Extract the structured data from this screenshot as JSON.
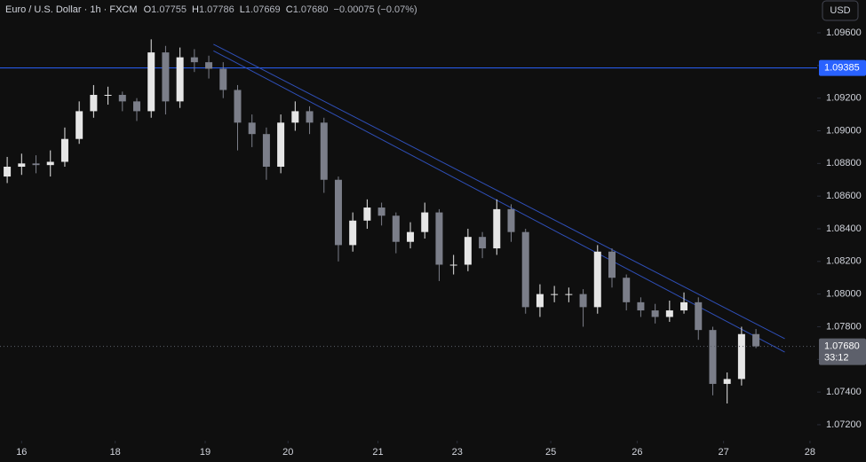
{
  "header": {
    "symbol": "Euro / U.S. Dollar · 1h · FXCM",
    "ohlc_letters": [
      "O",
      "H",
      "L",
      "C"
    ],
    "ohlc_values": [
      "1.07755",
      "1.07786",
      "1.07669",
      "1.07680"
    ],
    "change": "−0.00075 (−0.07%)",
    "currency": "USD"
  },
  "chart_data": {
    "type": "candlestick",
    "up_color": "#e6e6e6",
    "down_color": "#7b7e89",
    "x": [
      2,
      6,
      10,
      14,
      18,
      22,
      26,
      30,
      34,
      38,
      42,
      46,
      50,
      54,
      58,
      62,
      66,
      70,
      74,
      78,
      82,
      86,
      90,
      94,
      98,
      102,
      106,
      110,
      114,
      118,
      122,
      126,
      130,
      134,
      138,
      142,
      146,
      150,
      154,
      158,
      162,
      166,
      170,
      174,
      178,
      182,
      186,
      190,
      194,
      198,
      202,
      206,
      210
    ],
    "open": [
      1.0872,
      1.0878,
      1.088,
      1.0879,
      1.0881,
      1.0895,
      1.0912,
      1.0922,
      1.0922,
      1.0918,
      1.0912,
      1.0948,
      1.0918,
      1.0945,
      1.0942,
      1.0938,
      1.0925,
      1.0905,
      1.0898,
      1.0878,
      1.0905,
      1.0912,
      1.0905,
      1.087,
      1.083,
      1.0845,
      1.0853,
      1.0848,
      1.0832,
      1.0838,
      1.085,
      1.0818,
      1.0818,
      1.0835,
      1.0828,
      1.0852,
      1.0838,
      1.0792,
      1.08,
      1.08,
      1.08,
      1.0792,
      1.0826,
      1.081,
      1.0795,
      1.079,
      1.0786,
      1.079,
      1.0795,
      1.0778,
      1.0745,
      1.0748,
      1.07755
    ],
    "high": [
      1.0884,
      1.0886,
      1.0885,
      1.0888,
      1.0902,
      1.0918,
      1.0928,
      1.0927,
      1.0924,
      1.092,
      1.0956,
      1.0952,
      1.0951,
      1.095,
      1.0946,
      1.0942,
      1.0928,
      1.091,
      1.0902,
      1.091,
      1.0918,
      1.0915,
      1.0908,
      1.0872,
      1.085,
      1.0858,
      1.0856,
      1.085,
      1.0844,
      1.0856,
      1.0852,
      1.0824,
      1.084,
      1.0838,
      1.0858,
      1.0855,
      1.084,
      1.0806,
      1.0805,
      1.0804,
      1.0803,
      1.083,
      1.0828,
      1.0812,
      1.0798,
      1.0794,
      1.0796,
      1.0801,
      1.0798,
      1.078,
      1.0752,
      1.078,
      1.07786
    ],
    "low": [
      1.0868,
      1.0873,
      1.0874,
      1.0872,
      1.0878,
      1.0892,
      1.0908,
      1.0916,
      1.0912,
      1.0906,
      1.0908,
      1.091,
      1.0914,
      1.0936,
      1.0932,
      1.092,
      1.0888,
      1.089,
      1.087,
      1.0874,
      1.09,
      1.0898,
      1.0862,
      1.082,
      1.0826,
      1.084,
      1.0842,
      1.0825,
      1.0828,
      1.0834,
      1.0808,
      1.0812,
      1.0814,
      1.0822,
      1.0824,
      1.0832,
      1.0788,
      1.0786,
      1.0795,
      1.0795,
      1.078,
      1.0788,
      1.0804,
      1.079,
      1.0786,
      1.0782,
      1.0783,
      1.0788,
      1.0772,
      1.0738,
      1.0733,
      1.0744,
      1.07669
    ],
    "close": [
      1.0878,
      1.088,
      1.0879,
      1.0881,
      1.0895,
      1.0912,
      1.0922,
      1.0922,
      1.0918,
      1.0912,
      1.0948,
      1.0918,
      1.0945,
      1.0942,
      1.0938,
      1.0925,
      1.0905,
      1.0898,
      1.0878,
      1.0905,
      1.0912,
      1.0905,
      1.087,
      1.083,
      1.0845,
      1.0853,
      1.0848,
      1.0832,
      1.0838,
      1.085,
      1.0818,
      1.0818,
      1.0835,
      1.0828,
      1.0852,
      1.0838,
      1.0792,
      1.08,
      1.08,
      1.08,
      1.0792,
      1.0826,
      1.081,
      1.0795,
      1.079,
      1.0786,
      1.079,
      1.0795,
      1.0778,
      1.0745,
      1.0748,
      1.07755,
      1.0768
    ],
    "xlim": [
      0,
      227
    ],
    "xticks": [
      {
        "value": 6,
        "label": "16"
      },
      {
        "value": 32,
        "label": "18"
      },
      {
        "value": 57,
        "label": "19"
      },
      {
        "value": 80,
        "label": "20"
      },
      {
        "value": 105,
        "label": "21"
      },
      {
        "value": 127,
        "label": "23"
      },
      {
        "value": 153,
        "label": "25"
      },
      {
        "value": 177,
        "label": "26"
      },
      {
        "value": 201,
        "label": "27"
      },
      {
        "value": 225,
        "label": "28"
      }
    ],
    "ylim": [
      1.07102,
      1.09801
    ],
    "yticks": [
      {
        "value": 1.096,
        "label": "1.09600"
      },
      {
        "value": 1.094,
        "label": "1.09400"
      },
      {
        "value": 1.092,
        "label": "1.09200"
      },
      {
        "value": 1.09,
        "label": "1.09000"
      },
      {
        "value": 1.088,
        "label": "1.08800"
      },
      {
        "value": 1.086,
        "label": "1.08600"
      },
      {
        "value": 1.084,
        "label": "1.08400"
      },
      {
        "value": 1.082,
        "label": "1.08200"
      },
      {
        "value": 1.08,
        "label": "1.08000"
      },
      {
        "value": 1.078,
        "label": "1.07800"
      },
      {
        "value": 1.076,
        "label": "1.07600"
      },
      {
        "value": 1.074,
        "label": "1.07400"
      },
      {
        "value": 1.072,
        "label": "1.07200"
      }
    ],
    "hline": {
      "value": 1.09385,
      "label": "1.09385",
      "color": "#2962ff"
    },
    "trendlines": [
      {
        "x": [
          59.3,
          218
        ],
        "y": [
          1.0953,
          1.07727
        ],
        "color": "#2f4fb8"
      },
      {
        "x": [
          59.3,
          218
        ],
        "y": [
          1.0949,
          1.07645
        ],
        "color": "#2f4fb8"
      }
    ],
    "last_price": {
      "label": "1.07680",
      "countdown": "33:12",
      "color": "#5d606b"
    }
  }
}
